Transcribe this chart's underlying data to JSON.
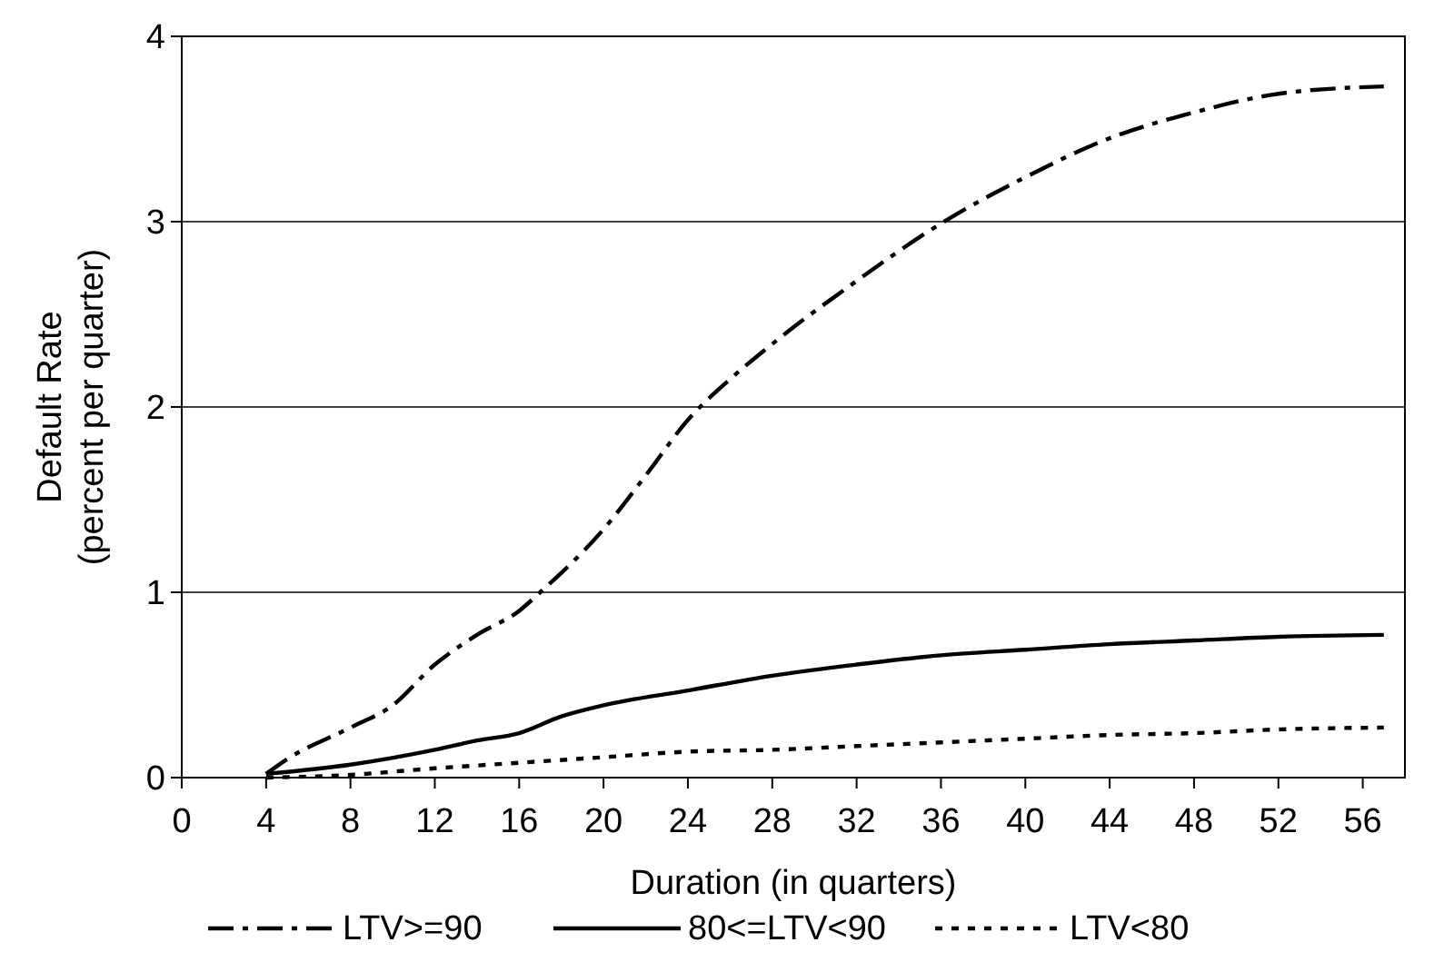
{
  "chart_data": {
    "type": "line",
    "xlabel": "Duration (in quarters)",
    "ylabel": "Default Rate\n(percent per quarter)",
    "xlim": [
      0,
      58
    ],
    "xticks": [
      0,
      4,
      8,
      12,
      16,
      20,
      24,
      28,
      32,
      36,
      40,
      44,
      48,
      52,
      56
    ],
    "ylim": [
      0,
      4
    ],
    "yticks": [
      0,
      1,
      2,
      3,
      4
    ],
    "grid": "y",
    "legend": "bottom",
    "marker": "none",
    "series": [
      {
        "name": "LTV>=90",
        "color": "#000000",
        "line_style": "dashed",
        "x": [
          4,
          5,
          8,
          10,
          12,
          14,
          16,
          17,
          20,
          22,
          24,
          26,
          28,
          32,
          36,
          40,
          44,
          48,
          52,
          57
        ],
        "values": [
          0.02,
          0.1,
          0.27,
          0.39,
          0.61,
          0.77,
          0.9,
          1.0,
          1.34,
          1.63,
          1.93,
          2.15,
          2.34,
          2.68,
          2.99,
          3.24,
          3.45,
          3.59,
          3.69,
          3.73
        ]
      },
      {
        "name": "80<=LTV<90",
        "color": "#000000",
        "line_style": "solid",
        "x": [
          4,
          8,
          12,
          14,
          16,
          18,
          20,
          24,
          28,
          32,
          36,
          40,
          44,
          48,
          52,
          57
        ],
        "values": [
          0.02,
          0.07,
          0.15,
          0.2,
          0.24,
          0.33,
          0.39,
          0.47,
          0.55,
          0.61,
          0.66,
          0.69,
          0.72,
          0.74,
          0.76,
          0.77
        ]
      },
      {
        "name": "LTV<80",
        "color": "#000000",
        "line_style": "dotted",
        "x": [
          4,
          8,
          12,
          16,
          20,
          24,
          28,
          32,
          36,
          40,
          44,
          48,
          52,
          57
        ],
        "values": [
          0,
          0.015,
          0.05,
          0.08,
          0.11,
          0.14,
          0.15,
          0.17,
          0.19,
          0.21,
          0.23,
          0.24,
          0.26,
          0.27
        ]
      }
    ]
  }
}
